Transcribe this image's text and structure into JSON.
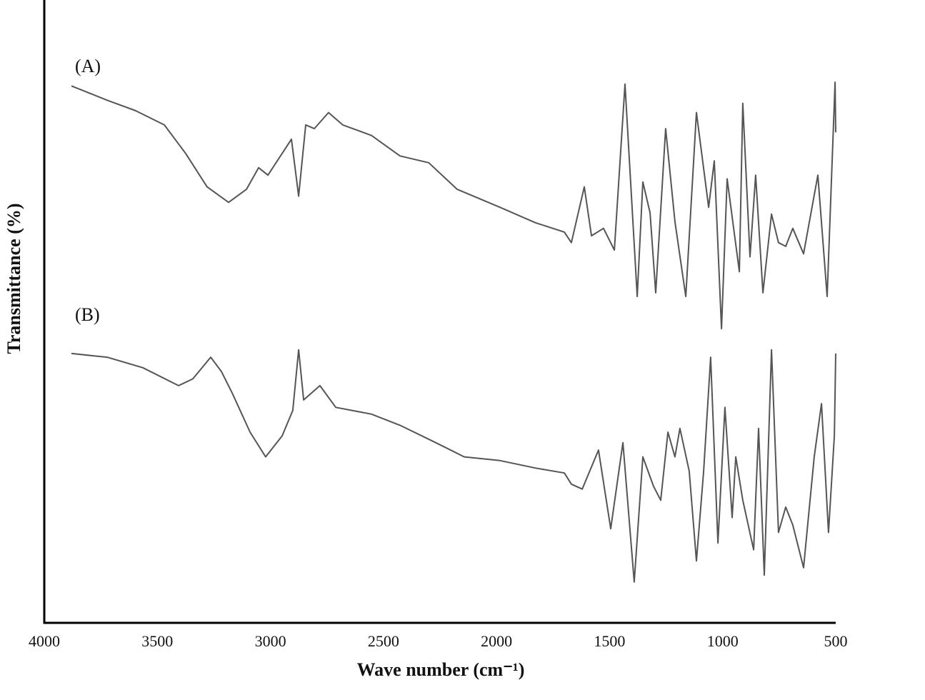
{
  "chart_data": {
    "type": "line",
    "x_label": "Wave number (cm⁻¹)",
    "y_label": "Transmittance (%)",
    "xlim": [
      4000,
      500
    ],
    "xticks": [
      4000,
      3500,
      3000,
      2500,
      2000,
      1500,
      1000,
      500
    ],
    "ylim": [
      0,
      100
    ],
    "annotations": [
      "(A)",
      "(B)"
    ],
    "series": [
      {
        "name": "(A)",
        "color": "#555555",
        "x": [
          3880,
          3722,
          3596,
          3469,
          3375,
          3280,
          3185,
          3106,
          3052,
          3011,
          2948,
          2907,
          2875,
          2844,
          2806,
          2743,
          2680,
          2553,
          2427,
          2300,
          2174,
          1985,
          1827,
          1700,
          1669,
          1612,
          1580,
          1527,
          1479,
          1432,
          1378,
          1353,
          1321,
          1296,
          1252,
          1211,
          1163,
          1116,
          1062,
          1037,
          1005,
          980,
          926,
          911,
          879,
          854,
          822,
          784,
          753,
          721,
          690,
          642,
          579,
          538,
          503,
          500
        ],
        "values": [
          86.7,
          84.4,
          82.7,
          80.4,
          75.8,
          70.4,
          67.9,
          70.0,
          73.5,
          72.3,
          75.8,
          78.1,
          68.9,
          80.4,
          79.8,
          82.4,
          80.4,
          78.7,
          75.4,
          74.3,
          70.0,
          67.1,
          64.6,
          63.1,
          61.4,
          70.4,
          62.5,
          63.7,
          60.2,
          87.0,
          52.7,
          71.2,
          66.2,
          53.3,
          79.8,
          64.8,
          52.7,
          82.4,
          67.1,
          74.6,
          47.5,
          71.7,
          56.7,
          83.9,
          59.1,
          72.3,
          53.3,
          66.0,
          61.4,
          60.8,
          63.7,
          59.6,
          72.3,
          52.7,
          87.3,
          79.2
        ]
      },
      {
        "name": "(B)",
        "color": "#555555",
        "x": [
          3880,
          3722,
          3564,
          3406,
          3343,
          3264,
          3217,
          3169,
          3090,
          3021,
          2948,
          2901,
          2875,
          2853,
          2781,
          2711,
          2553,
          2427,
          2269,
          2143,
          1985,
          1827,
          1700,
          1669,
          1621,
          1549,
          1495,
          1441,
          1391,
          1353,
          1306,
          1274,
          1242,
          1211,
          1189,
          1148,
          1116,
          1084,
          1053,
          1021,
          990,
          958,
          942,
          911,
          863,
          841,
          816,
          784,
          753,
          721,
          690,
          642,
          595,
          563,
          532,
          506,
          503,
          500
        ],
        "values": [
          43.5,
          42.9,
          41.2,
          38.3,
          39.4,
          42.9,
          40.6,
          37.1,
          30.8,
          26.8,
          30.2,
          34.3,
          44.1,
          36.0,
          38.3,
          34.8,
          33.7,
          31.9,
          29.1,
          26.8,
          26.2,
          25.0,
          24.2,
          22.4,
          21.6,
          27.9,
          15.2,
          29.1,
          6.6,
          26.8,
          22.1,
          19.8,
          30.8,
          26.8,
          31.4,
          24.5,
          10.0,
          24.5,
          42.9,
          12.9,
          34.8,
          17.0,
          26.8,
          19.8,
          11.8,
          31.4,
          7.7,
          44.1,
          14.6,
          18.7,
          15.8,
          8.9,
          26.8,
          35.4,
          14.6,
          30.2,
          37.1,
          43.5
        ]
      }
    ]
  }
}
